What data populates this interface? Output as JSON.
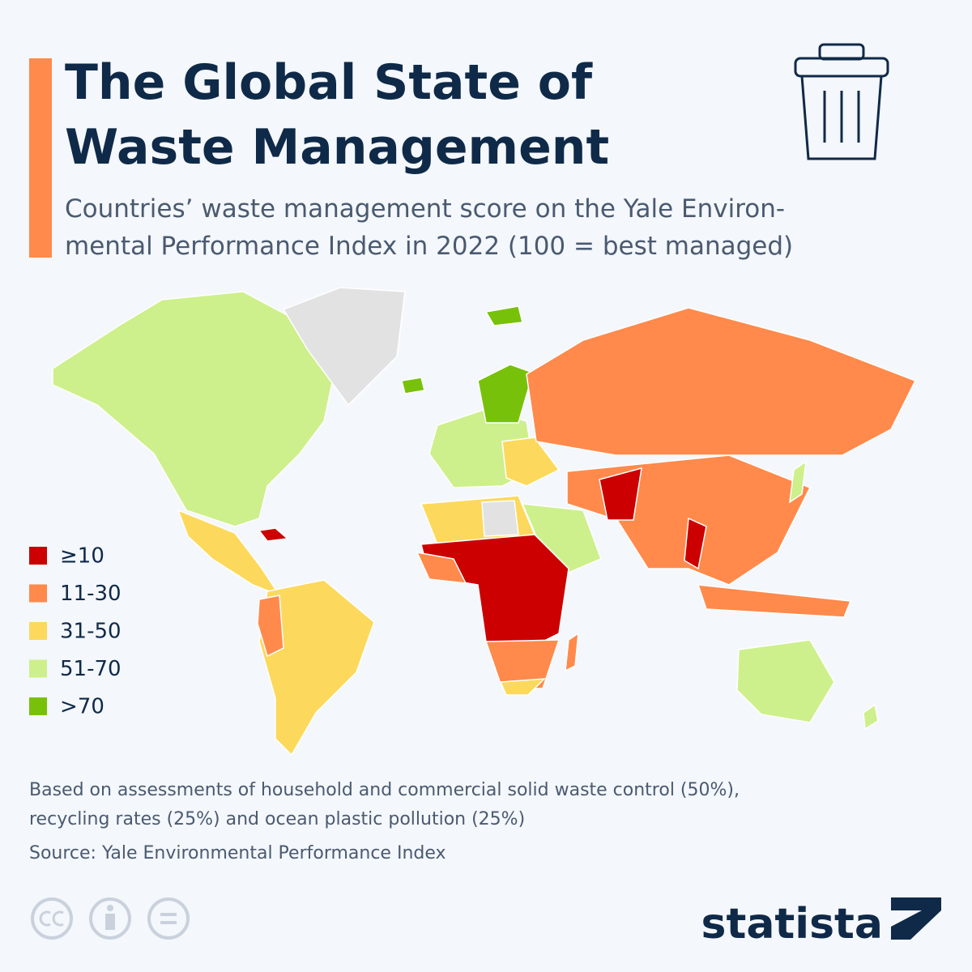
{
  "header": {
    "title_lines": [
      "The Global State of",
      "Waste Management"
    ],
    "subtitle_lines": [
      "Countries’ waste management score on the Yale Environ-",
      "mental Performance Index in 2022 (100 = best managed)"
    ]
  },
  "legend": [
    {
      "label": "≥10",
      "color": "#cc0000"
    },
    {
      "label": "11-30",
      "color": "#ff8a4c"
    },
    {
      "label": "31-50",
      "color": "#fcd95c"
    },
    {
      "label": "51-70",
      "color": "#cdf08c"
    },
    {
      "label": ">70",
      "color": "#78c10a"
    }
  ],
  "footer": {
    "note_lines": [
      "Based on assessments of household and commercial solid waste control (50%),",
      "recycling rates (25%) and ocean plastic pollution (25%)"
    ],
    "source": "Source: Yale Environmental Performance Index",
    "brand": "statista"
  }
}
